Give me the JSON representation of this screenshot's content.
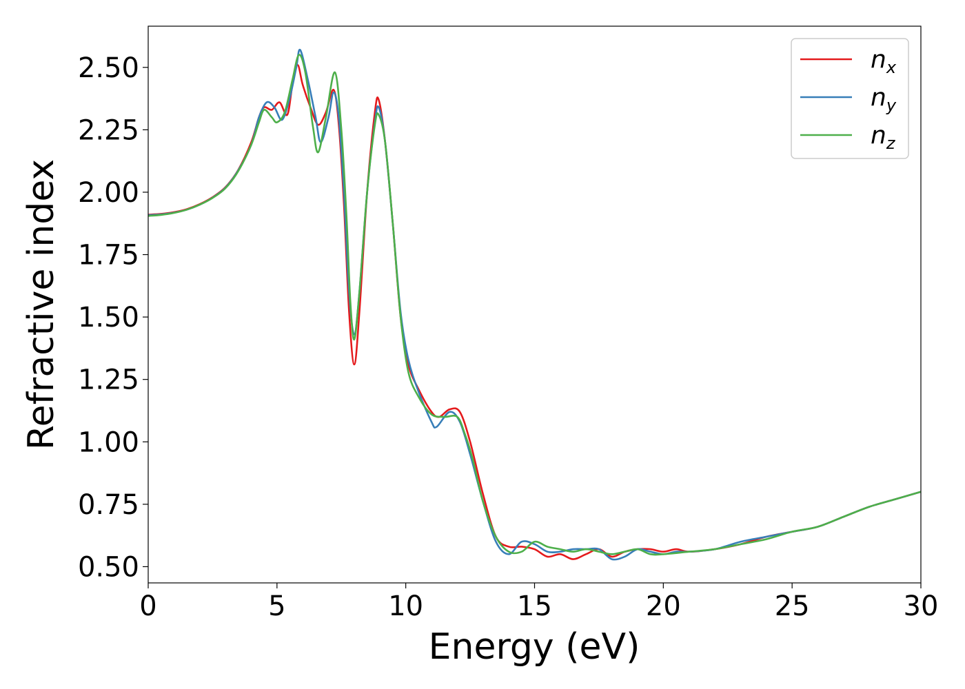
{
  "chart_data": {
    "type": "line",
    "xlabel": "Energy (eV)",
    "ylabel": "Refractive index",
    "xlim": [
      0,
      30
    ],
    "ylim": [
      0.435,
      2.665
    ],
    "xticks": [
      "0",
      "5",
      "10",
      "15",
      "20",
      "25",
      "30"
    ],
    "yticks": [
      "0.50",
      "0.75",
      "1.00",
      "1.25",
      "1.50",
      "1.75",
      "2.00",
      "2.25",
      "2.50"
    ],
    "grid": false,
    "legend_position": "top-right",
    "series": [
      {
        "name": "n",
        "subscript": "x",
        "color": "#e41a1c",
        "points": [
          [
            0,
            1.91
          ],
          [
            0.5,
            1.913
          ],
          [
            1,
            1.92
          ],
          [
            1.5,
            1.932
          ],
          [
            2,
            1.952
          ],
          [
            2.5,
            1.98
          ],
          [
            3,
            2.02
          ],
          [
            3.5,
            2.09
          ],
          [
            4,
            2.2
          ],
          [
            4.3,
            2.3
          ],
          [
            4.5,
            2.34
          ],
          [
            4.8,
            2.33
          ],
          [
            5.1,
            2.36
          ],
          [
            5.4,
            2.31
          ],
          [
            5.6,
            2.43
          ],
          [
            5.8,
            2.51
          ],
          [
            6,
            2.43
          ],
          [
            6.3,
            2.34
          ],
          [
            6.6,
            2.27
          ],
          [
            6.9,
            2.32
          ],
          [
            7.2,
            2.41
          ],
          [
            7.4,
            2.27
          ],
          [
            7.6,
            1.95
          ],
          [
            7.8,
            1.52
          ],
          [
            8,
            1.31
          ],
          [
            8.2,
            1.52
          ],
          [
            8.5,
            2.0
          ],
          [
            8.8,
            2.32
          ],
          [
            8.95,
            2.37
          ],
          [
            9.2,
            2.2
          ],
          [
            9.5,
            1.87
          ],
          [
            9.8,
            1.5
          ],
          [
            10.1,
            1.31
          ],
          [
            10.5,
            1.21
          ],
          [
            11,
            1.12
          ],
          [
            11.3,
            1.1
          ],
          [
            11.7,
            1.13
          ],
          [
            12.1,
            1.12
          ],
          [
            12.5,
            1.0
          ],
          [
            13,
            0.79
          ],
          [
            13.5,
            0.62
          ],
          [
            14,
            0.58
          ],
          [
            14.5,
            0.58
          ],
          [
            15,
            0.57
          ],
          [
            15.5,
            0.54
          ],
          [
            16,
            0.55
          ],
          [
            16.5,
            0.53
          ],
          [
            17,
            0.55
          ],
          [
            17.5,
            0.57
          ],
          [
            18,
            0.54
          ],
          [
            18.5,
            0.56
          ],
          [
            19,
            0.57
          ],
          [
            19.5,
            0.57
          ],
          [
            20,
            0.56
          ],
          [
            20.5,
            0.57
          ],
          [
            21,
            0.56
          ],
          [
            22,
            0.57
          ],
          [
            23,
            0.59
          ],
          [
            24,
            0.62
          ],
          [
            25,
            0.64
          ],
          [
            26,
            0.66
          ],
          [
            27,
            0.7
          ],
          [
            28,
            0.74
          ],
          [
            29,
            0.77
          ],
          [
            30,
            0.8
          ]
        ]
      },
      {
        "name": "n",
        "subscript": "y",
        "color": "#377eb8",
        "points": [
          [
            0,
            1.908
          ],
          [
            0.5,
            1.911
          ],
          [
            1,
            1.918
          ],
          [
            1.5,
            1.93
          ],
          [
            2,
            1.95
          ],
          [
            2.5,
            1.978
          ],
          [
            3,
            2.018
          ],
          [
            3.5,
            2.088
          ],
          [
            4,
            2.19
          ],
          [
            4.3,
            2.3
          ],
          [
            4.6,
            2.36
          ],
          [
            4.9,
            2.34
          ],
          [
            5.2,
            2.29
          ],
          [
            5.5,
            2.38
          ],
          [
            5.75,
            2.5
          ],
          [
            5.9,
            2.57
          ],
          [
            6.2,
            2.45
          ],
          [
            6.5,
            2.3
          ],
          [
            6.7,
            2.2
          ],
          [
            7,
            2.3
          ],
          [
            7.2,
            2.4
          ],
          [
            7.4,
            2.3
          ],
          [
            7.6,
            2.0
          ],
          [
            7.8,
            1.6
          ],
          [
            8,
            1.43
          ],
          [
            8.2,
            1.6
          ],
          [
            8.5,
            2.0
          ],
          [
            8.8,
            2.28
          ],
          [
            8.95,
            2.34
          ],
          [
            9.2,
            2.2
          ],
          [
            9.5,
            1.87
          ],
          [
            9.8,
            1.52
          ],
          [
            10.1,
            1.33
          ],
          [
            10.5,
            1.2
          ],
          [
            11,
            1.08
          ],
          [
            11.2,
            1.06
          ],
          [
            11.7,
            1.12
          ],
          [
            12.1,
            1.08
          ],
          [
            12.5,
            0.95
          ],
          [
            13,
            0.76
          ],
          [
            13.5,
            0.6
          ],
          [
            14,
            0.55
          ],
          [
            14.5,
            0.6
          ],
          [
            15,
            0.59
          ],
          [
            15.5,
            0.56
          ],
          [
            16,
            0.56
          ],
          [
            16.5,
            0.57
          ],
          [
            17,
            0.57
          ],
          [
            17.5,
            0.57
          ],
          [
            18,
            0.53
          ],
          [
            18.5,
            0.54
          ],
          [
            19,
            0.57
          ],
          [
            19.5,
            0.56
          ],
          [
            20,
            0.55
          ],
          [
            20.5,
            0.56
          ],
          [
            21,
            0.56
          ],
          [
            22,
            0.57
          ],
          [
            23,
            0.6
          ],
          [
            24,
            0.62
          ],
          [
            25,
            0.64
          ],
          [
            26,
            0.66
          ],
          [
            27,
            0.7
          ],
          [
            28,
            0.74
          ],
          [
            29,
            0.77
          ],
          [
            30,
            0.8
          ]
        ]
      },
      {
        "name": "n",
        "subscript": "z",
        "color": "#4daf4a",
        "points": [
          [
            0,
            1.905
          ],
          [
            0.5,
            1.909
          ],
          [
            1,
            1.917
          ],
          [
            1.5,
            1.93
          ],
          [
            2,
            1.95
          ],
          [
            2.5,
            1.977
          ],
          [
            3,
            2.016
          ],
          [
            3.5,
            2.085
          ],
          [
            4,
            2.19
          ],
          [
            4.3,
            2.28
          ],
          [
            4.5,
            2.33
          ],
          [
            4.8,
            2.3
          ],
          [
            5,
            2.28
          ],
          [
            5.3,
            2.32
          ],
          [
            5.6,
            2.45
          ],
          [
            5.85,
            2.55
          ],
          [
            6.1,
            2.48
          ],
          [
            6.4,
            2.26
          ],
          [
            6.6,
            2.16
          ],
          [
            6.9,
            2.3
          ],
          [
            7.25,
            2.48
          ],
          [
            7.5,
            2.25
          ],
          [
            7.7,
            1.9
          ],
          [
            7.85,
            1.56
          ],
          [
            8,
            1.41
          ],
          [
            8.2,
            1.6
          ],
          [
            8.5,
            2.0
          ],
          [
            8.8,
            2.27
          ],
          [
            8.95,
            2.31
          ],
          [
            9.2,
            2.2
          ],
          [
            9.5,
            1.87
          ],
          [
            9.8,
            1.5
          ],
          [
            10.1,
            1.28
          ],
          [
            10.5,
            1.18
          ],
          [
            11,
            1.11
          ],
          [
            11.5,
            1.1
          ],
          [
            12,
            1.1
          ],
          [
            12.3,
            1.03
          ],
          [
            12.6,
            0.93
          ],
          [
            13,
            0.76
          ],
          [
            13.5,
            0.62
          ],
          [
            14,
            0.56
          ],
          [
            14.5,
            0.56
          ],
          [
            15,
            0.6
          ],
          [
            15.5,
            0.58
          ],
          [
            16,
            0.57
          ],
          [
            16.5,
            0.56
          ],
          [
            17,
            0.57
          ],
          [
            17.5,
            0.56
          ],
          [
            18,
            0.55
          ],
          [
            18.5,
            0.56
          ],
          [
            19,
            0.57
          ],
          [
            19.5,
            0.55
          ],
          [
            20,
            0.55
          ],
          [
            21,
            0.56
          ],
          [
            22,
            0.57
          ],
          [
            23,
            0.59
          ],
          [
            24,
            0.61
          ],
          [
            25,
            0.64
          ],
          [
            26,
            0.66
          ],
          [
            27,
            0.7
          ],
          [
            28,
            0.74
          ],
          [
            29,
            0.77
          ],
          [
            30,
            0.8
          ]
        ]
      }
    ]
  }
}
